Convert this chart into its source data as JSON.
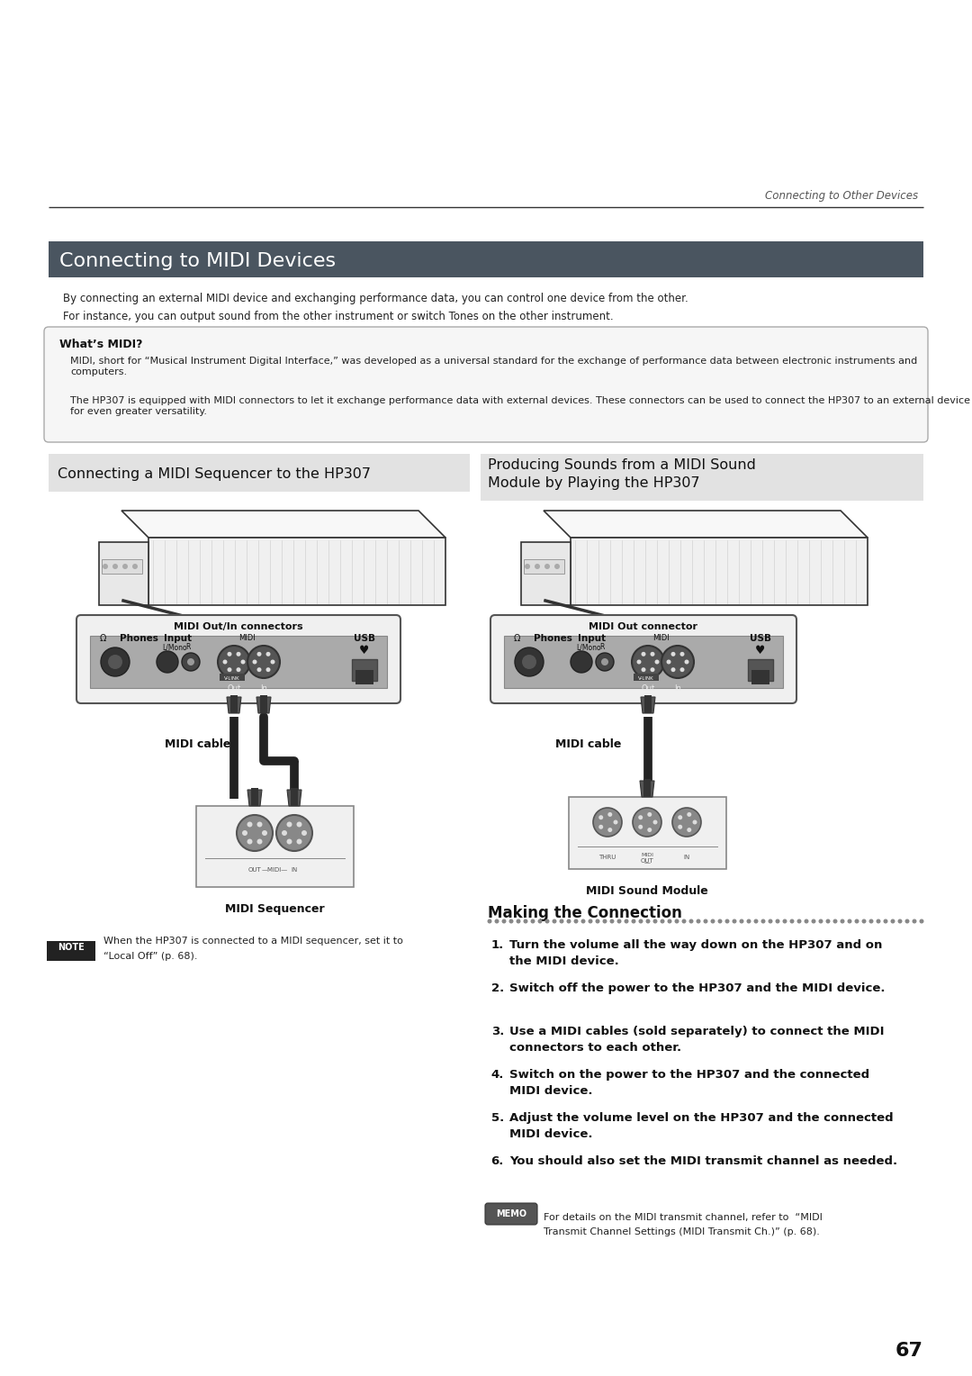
{
  "page_bg": "#ffffff",
  "header_text": "Connecting to Other Devices",
  "section_title": "Connecting to MIDI Devices",
  "section_title_bg": "#4a5560",
  "section_title_color": "#ffffff",
  "intro_lines": [
    "By connecting an external MIDI device and exchanging performance data, you can control one device from the other.",
    "For instance, you can output sound from the other instrument or switch Tones on the other instrument."
  ],
  "whats_midi_title": "What’s MIDI?",
  "whats_midi_body_1": "MIDI, short for “Musical Instrument Digital Interface,” was developed as a universal standard for the exchange of performance data between electronic instruments and computers.",
  "whats_midi_body_2": "The HP307 is equipped with MIDI connectors to let it exchange performance data with external devices. These connectors can be used to connect the HP307 to an external device for even greater versatility.",
  "left_panel_title": "Connecting a MIDI Sequencer to the HP307",
  "right_panel_title": "Producing Sounds from a MIDI Sound\nModule by Playing the HP307",
  "left_label_connector": "MIDI Out/In connectors",
  "right_label_connector": "MIDI Out connector",
  "left_cable_label": "MIDI cable",
  "right_cable_label": "MIDI cable",
  "left_device_label": "MIDI Sequencer",
  "right_device_label": "MIDI Sound Module",
  "note_label": "NOTE",
  "note_text": "When the HP307 is connected to a MIDI sequencer, set it to\n“Local Off” (p. 68).",
  "making_connection_title": "Making the Connection",
  "steps": [
    "Turn the volume all the way down on the HP307 and on\nthe MIDI device.",
    "Switch off the power to the HP307 and the MIDI device.",
    "Use a MIDI cables (sold separately) to connect the MIDI\nconnectors to each other.",
    "Switch on the power to the HP307 and the connected\nMIDI device.",
    "Adjust the volume level on the HP307 and the connected\nMIDI device.",
    "You should also set the MIDI transmit channel as needed."
  ],
  "memo_label": "MEMO",
  "memo_text_1": "For details on the MIDI transmit channel, refer to  “MIDI",
  "memo_text_2": "Transmit Channel Settings (MIDI Transmit Ch.)” (p. 68).",
  "page_number": "67"
}
